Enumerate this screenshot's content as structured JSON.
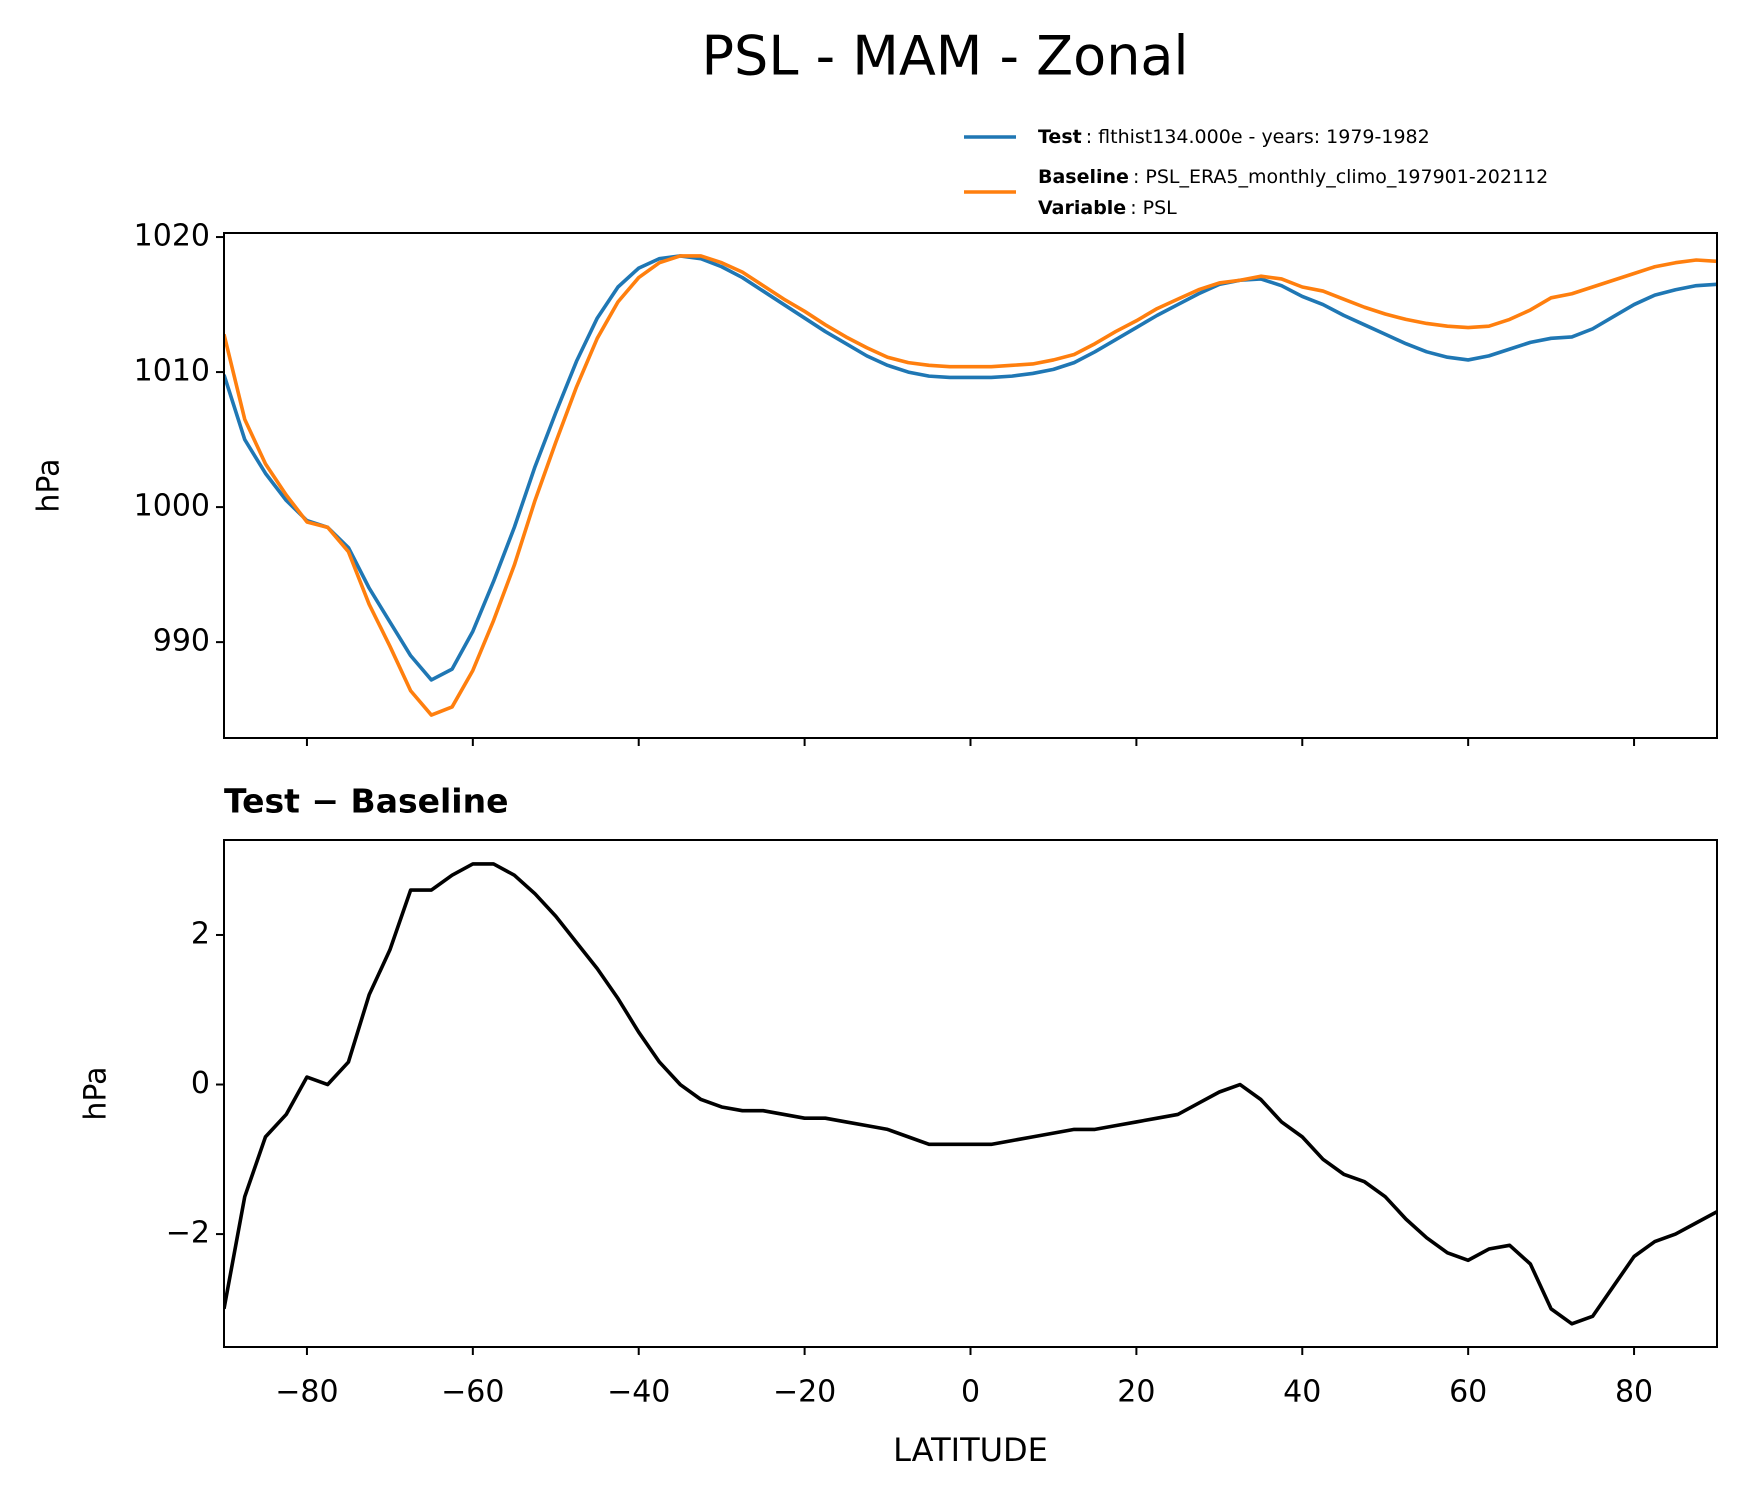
{
  "title": "PSL - MAM - Zonal",
  "chart_data": [
    {
      "type": "line",
      "ylabel": "hPa",
      "x": [
        -90,
        -87.5,
        -85,
        -82.5,
        -80,
        -77.5,
        -75,
        -72.5,
        -70,
        -67.5,
        -65,
        -62.5,
        -60,
        -57.5,
        -55,
        -52.5,
        -50,
        -47.5,
        -45,
        -42.5,
        -40,
        -37.5,
        -35,
        -32.5,
        -30,
        -27.5,
        -25,
        -22.5,
        -20,
        -17.5,
        -15,
        -12.5,
        -10,
        -7.5,
        -5,
        -2.5,
        0,
        2.5,
        5,
        7.5,
        10,
        12.5,
        15,
        17.5,
        20,
        22.5,
        25,
        27.5,
        30,
        32.5,
        35,
        37.5,
        40,
        42.5,
        45,
        47.5,
        50,
        52.5,
        55,
        57.5,
        60,
        62.5,
        65,
        67.5,
        70,
        72.5,
        75,
        77.5,
        80,
        82.5,
        85,
        87.5,
        90
      ],
      "series": [
        {
          "name": "Test",
          "description": ": flthist134.000e - years: 1979-1982",
          "color": "#1f77b4",
          "values": [
            1009.8,
            1005,
            1002.5,
            1000.5,
            999,
            998.5,
            997,
            994,
            991.5,
            989,
            987.2,
            988,
            990.8,
            994.5,
            998.5,
            1003,
            1007,
            1010.8,
            1014,
            1016.3,
            1017.7,
            1018.4,
            1018.6,
            1018.4,
            1017.8,
            1017,
            1016,
            1015,
            1014,
            1013,
            1012.1,
            1011.2,
            1010.5,
            1010,
            1009.7,
            1009.6,
            1009.6,
            1009.6,
            1009.7,
            1009.9,
            1010.2,
            1010.7,
            1011.5,
            1012.4,
            1013.3,
            1014.2,
            1015,
            1015.8,
            1016.5,
            1016.8,
            1016.9,
            1016.4,
            1015.6,
            1015,
            1014.2,
            1013.5,
            1012.8,
            1012.1,
            1011.5,
            1011.1,
            1010.9,
            1011.2,
            1011.7,
            1012.2,
            1012.5,
            1012.6,
            1013.2,
            1014.1,
            1015,
            1015.7,
            1016.1,
            1016.4,
            1016.5
          ]
        },
        {
          "name": "Baseline",
          "description": ": PSL_ERA5_monthly_climo_197901-202112",
          "color": "#ff7f0e",
          "legend_extra": {
            "name": "Variable",
            "description": ": PSL"
          },
          "values": [
            1012.8,
            1006.5,
            1003.2,
            1000.9,
            998.9,
            998.5,
            996.7,
            992.8,
            989.7,
            986.4,
            984.6,
            985.2,
            987.9,
            991.6,
            995.7,
            1000.5,
            1004.8,
            1008.9,
            1012.5,
            1015.2,
            1017,
            1018.1,
            1018.6,
            1018.6,
            1018.1,
            1017.4,
            1016.4,
            1015.4,
            1014.5,
            1013.5,
            1012.6,
            1011.8,
            1011.1,
            1010.7,
            1010.5,
            1010.4,
            1010.4,
            1010.4,
            1010.5,
            1010.6,
            1010.9,
            1011.3,
            1012.1,
            1013,
            1013.8,
            1014.7,
            1015.4,
            1016.1,
            1016.6,
            1016.8,
            1017.1,
            1016.9,
            1016.3,
            1016,
            1015.4,
            1014.8,
            1014.3,
            1013.9,
            1013.6,
            1013.4,
            1013.3,
            1013.4,
            1013.9,
            1014.6,
            1015.5,
            1015.8,
            1016.3,
            1016.8,
            1017.3,
            1017.8,
            1018.1,
            1018.3,
            1018.2
          ]
        }
      ],
      "xlim": [
        -90,
        90
      ],
      "xticks": [
        -80,
        -60,
        -40,
        -20,
        0,
        20,
        40,
        60,
        80
      ],
      "ylim": [
        982.9,
        1020.3
      ],
      "yticks": [
        990,
        1000,
        1010,
        1020
      ]
    },
    {
      "type": "line",
      "title": "Test − Baseline",
      "xlabel": "LATITUDE",
      "ylabel": "hPa",
      "x": [
        -90,
        -87.5,
        -85,
        -82.5,
        -80,
        -77.5,
        -75,
        -72.5,
        -70,
        -67.5,
        -65,
        -62.5,
        -60,
        -57.5,
        -55,
        -52.5,
        -50,
        -47.5,
        -45,
        -42.5,
        -40,
        -37.5,
        -35,
        -32.5,
        -30,
        -27.5,
        -25,
        -22.5,
        -20,
        -17.5,
        -15,
        -12.5,
        -10,
        -7.5,
        -5,
        -2.5,
        0,
        2.5,
        5,
        7.5,
        10,
        12.5,
        15,
        17.5,
        20,
        22.5,
        25,
        27.5,
        30,
        32.5,
        35,
        37.5,
        40,
        42.5,
        45,
        47.5,
        50,
        52.5,
        55,
        57.5,
        60,
        62.5,
        65,
        67.5,
        70,
        72.5,
        75,
        77.5,
        80,
        82.5,
        85,
        87.5,
        90
      ],
      "series": [
        {
          "color": "#000000",
          "values": [
            -3,
            -1.5,
            -0.7,
            -0.4,
            0.1,
            0,
            0.3,
            1.2,
            1.8,
            2.6,
            2.6,
            2.8,
            2.95,
            2.95,
            2.8,
            2.55,
            2.25,
            1.9,
            1.55,
            1.15,
            0.7,
            0.3,
            0,
            -0.2,
            -0.3,
            -0.35,
            -0.35,
            -0.4,
            -0.45,
            -0.45,
            -0.5,
            -0.55,
            -0.6,
            -0.7,
            -0.8,
            -0.8,
            -0.8,
            -0.8,
            -0.75,
            -0.7,
            -0.65,
            -0.6,
            -0.6,
            -0.55,
            -0.5,
            -0.45,
            -0.4,
            -0.25,
            -0.1,
            0,
            -0.2,
            -0.5,
            -0.7,
            -1,
            -1.2,
            -1.3,
            -1.5,
            -1.8,
            -2.05,
            -2.25,
            -2.35,
            -2.2,
            -2.15,
            -2.4,
            -3,
            -3.2,
            -3.1,
            -2.7,
            -2.3,
            -2.1,
            -2,
            -1.85,
            -1.7
          ]
        }
      ],
      "xlim": [
        -90,
        90
      ],
      "xticks": [
        {
          "value": -80,
          "label": "−80"
        },
        {
          "value": -60,
          "label": "−60"
        },
        {
          "value": -40,
          "label": "−40"
        },
        {
          "value": -20,
          "label": "−20"
        },
        0,
        20,
        40,
        60,
        80
      ],
      "ylim": [
        -3.51,
        3.27
      ],
      "yticks": [
        {
          "value": -2,
          "label": "−2"
        },
        0,
        2
      ]
    }
  ]
}
